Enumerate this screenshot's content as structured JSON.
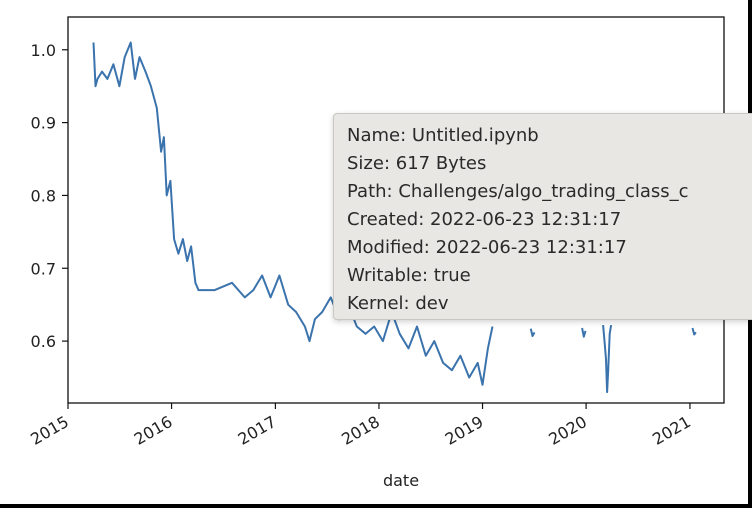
{
  "chart_data": {
    "type": "line",
    "xlabel": "date",
    "ylabel": "",
    "title": "",
    "xlim": [
      "2015-01-01",
      "2021-05-01"
    ],
    "ylim": [
      0.515,
      1.045
    ],
    "x_ticks": [
      "2015",
      "2016",
      "2017",
      "2018",
      "2019",
      "2020",
      "2021"
    ],
    "y_ticks": [
      "0.6",
      "0.7",
      "0.8",
      "0.9",
      "1.0"
    ],
    "y_tick_values": [
      0.6,
      0.7,
      0.8,
      0.9,
      1.0
    ],
    "grid": false,
    "line_color": "#3b73ad",
    "series": [
      {
        "points": [
          [
            "2015-04-01",
            1.01
          ],
          [
            "2015-04-08",
            0.95
          ],
          [
            "2015-04-15",
            0.96
          ],
          [
            "2015-05-01",
            0.97
          ],
          [
            "2015-05-20",
            0.96
          ],
          [
            "2015-06-10",
            0.98
          ],
          [
            "2015-07-01",
            0.95
          ],
          [
            "2015-07-20",
            0.99
          ],
          [
            "2015-08-10",
            1.01
          ],
          [
            "2015-08-25",
            0.96
          ],
          [
            "2015-09-10",
            0.99
          ],
          [
            "2015-10-01",
            0.97
          ],
          [
            "2015-10-20",
            0.95
          ],
          [
            "2015-11-10",
            0.92
          ],
          [
            "2015-11-25",
            0.86
          ],
          [
            "2015-12-05",
            0.88
          ],
          [
            "2015-12-15",
            0.8
          ],
          [
            "2015-12-28",
            0.82
          ],
          [
            "2016-01-10",
            0.74
          ],
          [
            "2016-01-25",
            0.72
          ],
          [
            "2016-02-10",
            0.74
          ],
          [
            "2016-02-25",
            0.71
          ],
          [
            "2016-03-10",
            0.73
          ],
          [
            "2016-03-25",
            0.68
          ],
          [
            "2016-04-05",
            0.67
          ],
          [
            "2016-06-01",
            0.67
          ],
          [
            "2016-08-01",
            0.68
          ],
          [
            "2016-09-15",
            0.66
          ],
          [
            "2016-10-15",
            0.67
          ],
          [
            "2016-11-15",
            0.69
          ],
          [
            "2016-12-15",
            0.66
          ],
          [
            "2017-01-15",
            0.69
          ],
          [
            "2017-02-15",
            0.65
          ],
          [
            "2017-03-15",
            0.64
          ],
          [
            "2017-04-15",
            0.62
          ],
          [
            "2017-05-01",
            0.6
          ],
          [
            "2017-05-20",
            0.63
          ],
          [
            "2017-06-15",
            0.64
          ],
          [
            "2017-07-15",
            0.66
          ],
          [
            "2017-08-15",
            0.63
          ],
          [
            "2017-09-15",
            0.65
          ],
          [
            "2017-10-15",
            0.62
          ],
          [
            "2017-11-15",
            0.61
          ],
          [
            "2017-12-15",
            0.62
          ],
          [
            "2018-01-15",
            0.6
          ],
          [
            "2018-02-15",
            0.64
          ],
          [
            "2018-03-15",
            0.61
          ],
          [
            "2018-04-15",
            0.59
          ],
          [
            "2018-05-15",
            0.62
          ],
          [
            "2018-06-15",
            0.58
          ],
          [
            "2018-07-15",
            0.6
          ],
          [
            "2018-08-15",
            0.57
          ],
          [
            "2018-09-15",
            0.56
          ],
          [
            "2018-10-15",
            0.58
          ],
          [
            "2018-11-15",
            0.55
          ],
          [
            "2018-12-15",
            0.57
          ],
          [
            "2019-01-01",
            0.54
          ],
          [
            "2019-01-20",
            0.59
          ],
          [
            "2019-02-05",
            0.62
          ]
        ],
        "visible_fragments": [
          [
            [
              "2019-06-20",
              0.617
            ],
            [
              "2019-06-26",
              0.607
            ],
            [
              "2019-07-03",
              0.612
            ]
          ],
          [
            [
              "2019-12-18",
              0.618
            ],
            [
              "2019-12-24",
              0.606
            ],
            [
              "2019-12-30",
              0.614
            ]
          ],
          [
            [
              "2020-03-01",
              0.622
            ],
            [
              "2020-03-06",
              0.6
            ],
            [
              "2020-03-11",
              0.575
            ],
            [
              "2020-03-15",
              0.53
            ],
            [
              "2020-03-19",
              0.56
            ],
            [
              "2020-03-24",
              0.61
            ],
            [
              "2020-03-29",
              0.622
            ]
          ],
          [
            [
              "2021-01-10",
              0.618
            ],
            [
              "2021-01-16",
              0.609
            ],
            [
              "2021-01-22",
              0.612
            ]
          ]
        ]
      }
    ]
  },
  "tooltip": {
    "name": "Name: Untitled.ipynb",
    "size": "Size: 617 Bytes",
    "path": "Path: Challenges/algo_trading_class_c",
    "created": "Created: 2022-06-23 12:31:17",
    "modified": "Modified: 2022-06-23 12:31:17",
    "writable": "Writable: true",
    "kernel": "Kernel: dev"
  }
}
